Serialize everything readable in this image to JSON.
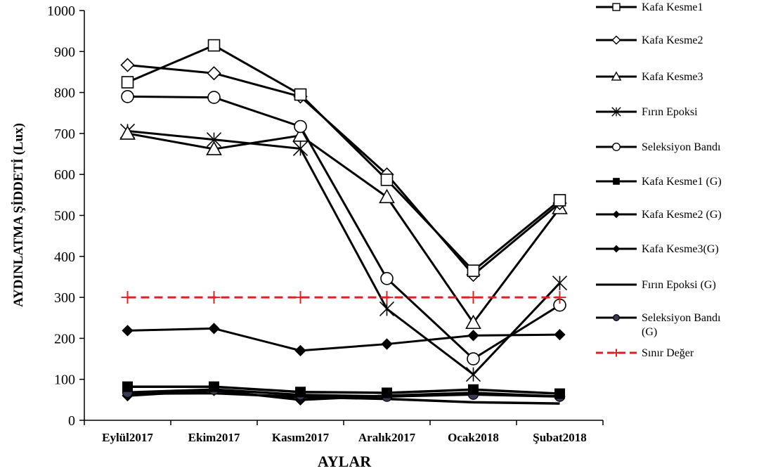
{
  "chart_data": {
    "type": "line",
    "xlabel": "AYLAR",
    "ylabel": "AYDINLATMA ŞİDDETİ (Lux)",
    "ylim": [
      0,
      1000
    ],
    "yticks": [
      "0",
      "100",
      "200",
      "300",
      "400",
      "500",
      "600",
      "700",
      "800",
      "900",
      "1000"
    ],
    "categories": [
      "Eylül2017",
      "Ekim2017",
      "Kasım2017",
      "Aralık2017",
      "Ocak2018",
      "Şubat2018"
    ],
    "grid": false,
    "legend_position": "right",
    "series": [
      {
        "name": "Kafa Kesme1",
        "marker": "square-open",
        "color": "#000000",
        "values": [
          825,
          915,
          795,
          587,
          365,
          537
        ]
      },
      {
        "name": "Kafa Kesme2",
        "marker": "diamond-open",
        "color": "#000000",
        "values": [
          867,
          847,
          790,
          600,
          355,
          530
        ]
      },
      {
        "name": "Kafa Kesme3",
        "marker": "triangle-open",
        "color": "#000000",
        "values": [
          700,
          662,
          695,
          545,
          238,
          518
        ]
      },
      {
        "name": "Fırın Epoksi",
        "marker": "star",
        "color": "#000000",
        "values": [
          706,
          685,
          663,
          272,
          112,
          335
        ]
      },
      {
        "name": "Seleksiyon Bandı",
        "marker": "circle-open",
        "color": "#000000",
        "values": [
          790,
          788,
          717,
          346,
          150,
          281
        ]
      },
      {
        "name": "Kafa Kesme1 (G)",
        "marker": "square-filled",
        "color": "#000000",
        "values": [
          82,
          82,
          69,
          67,
          75,
          65
        ]
      },
      {
        "name": "Kafa Kesme2 (G)",
        "marker": "diamond-filled",
        "color": "#000000",
        "values": [
          219,
          224,
          170,
          186,
          207,
          209
        ]
      },
      {
        "name": "Kafa Kesme3(G)",
        "marker": "diamond-filled",
        "color": "#000000",
        "values": [
          60,
          73,
          50,
          60,
          67,
          58
        ]
      },
      {
        "name": "Fırın Epoksi (G)",
        "marker": "none",
        "color": "#000000",
        "values": [
          65,
          66,
          57,
          52,
          44,
          41
        ]
      },
      {
        "name": "Seleksiyon Bandı (G)",
        "marker": "circle-filled",
        "color": "#000000",
        "values": [
          68,
          75,
          62,
          58,
          63,
          58
        ]
      },
      {
        "name": "Sınır Değer",
        "marker": "plus",
        "color": "#e02020",
        "dashed": true,
        "values": [
          300,
          300,
          300,
          300,
          300,
          300
        ]
      }
    ]
  }
}
